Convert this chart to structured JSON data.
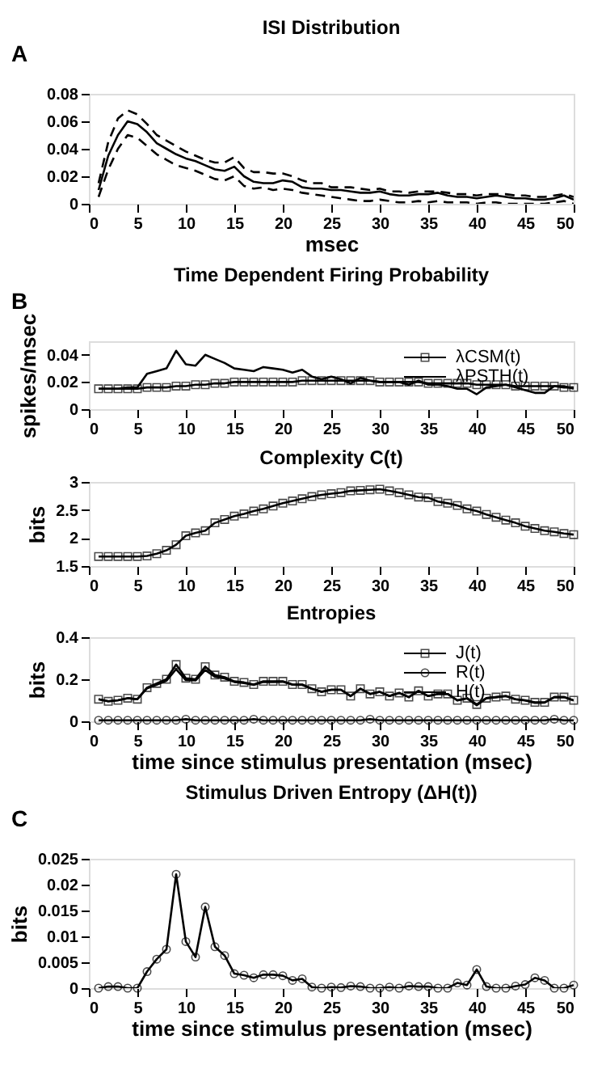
{
  "chart_data": [
    {
      "type": "line",
      "title": "ISI Distribution",
      "xlabel": "msec",
      "annotations": [
        "A"
      ],
      "x": [
        1,
        2,
        3,
        4,
        5,
        6,
        7,
        8,
        9,
        10,
        11,
        12,
        13,
        14,
        15,
        16,
        17,
        18,
        19,
        20,
        21,
        22,
        23,
        24,
        25,
        26,
        27,
        28,
        29,
        30,
        31,
        32,
        33,
        34,
        35,
        36,
        37,
        38,
        39,
        40,
        41,
        42,
        43,
        44,
        45,
        46,
        47,
        48,
        49,
        50
      ],
      "xlim": [
        0,
        50
      ],
      "xticks": [
        0,
        5,
        10,
        15,
        20,
        25,
        30,
        35,
        40,
        45,
        50
      ],
      "ylim": [
        0,
        0.08
      ],
      "yticks": [
        0,
        0.02,
        0.04,
        0.06,
        0.08
      ],
      "grid": false,
      "marker": "none",
      "series": [
        {
          "color": "#000000",
          "line_style": "solid",
          "values": [
            0.01,
            0.035,
            0.05,
            0.06,
            0.058,
            0.052,
            0.044,
            0.04,
            0.036,
            0.033,
            0.031,
            0.028,
            0.025,
            0.024,
            0.027,
            0.02,
            0.016,
            0.015,
            0.015,
            0.017,
            0.016,
            0.012,
            0.011,
            0.011,
            0.01,
            0.01,
            0.009,
            0.008,
            0.008,
            0.009,
            0.007,
            0.006,
            0.006,
            0.007,
            0.007,
            0.008,
            0.006,
            0.005,
            0.005,
            0.004,
            0.005,
            0.006,
            0.005,
            0.004,
            0.004,
            0.003,
            0.003,
            0.004,
            0.006,
            0.003
          ]
        },
        {
          "color": "#000000",
          "line_style": "dashed",
          "values": [
            0.015,
            0.045,
            0.062,
            0.068,
            0.065,
            0.058,
            0.05,
            0.046,
            0.042,
            0.038,
            0.035,
            0.032,
            0.03,
            0.03,
            0.034,
            0.026,
            0.023,
            0.023,
            0.022,
            0.022,
            0.02,
            0.017,
            0.015,
            0.015,
            0.012,
            0.012,
            0.012,
            0.011,
            0.01,
            0.011,
            0.009,
            0.009,
            0.008,
            0.009,
            0.009,
            0.009,
            0.008,
            0.007,
            0.007,
            0.006,
            0.007,
            0.007,
            0.007,
            0.006,
            0.006,
            0.005,
            0.005,
            0.006,
            0.007,
            0.005
          ]
        },
        {
          "color": "#000000",
          "line_style": "dashed",
          "values": [
            0.005,
            0.025,
            0.04,
            0.05,
            0.048,
            0.042,
            0.036,
            0.032,
            0.028,
            0.026,
            0.024,
            0.021,
            0.018,
            0.017,
            0.02,
            0.013,
            0.011,
            0.012,
            0.01,
            0.011,
            0.01,
            0.008,
            0.007,
            0.006,
            0.005,
            0.004,
            0.003,
            0.002,
            0.002,
            0.003,
            0.002,
            0.001,
            0.001,
            0.002,
            0.001,
            0.002,
            0.001,
            0.001,
            0.001,
            0.0,
            0.001,
            0.001,
            0.0,
            0.0,
            0.0,
            0.0,
            0.0,
            0.001,
            0.002,
            0.0
          ]
        }
      ]
    },
    {
      "type": "line",
      "title": "Time Dependent Firing Probability",
      "ylabel": "spikes/msec",
      "annotations": [
        "B"
      ],
      "x": [
        1,
        2,
        3,
        4,
        5,
        6,
        7,
        8,
        9,
        10,
        11,
        12,
        13,
        14,
        15,
        16,
        17,
        18,
        19,
        20,
        21,
        22,
        23,
        24,
        25,
        26,
        27,
        28,
        29,
        30,
        31,
        32,
        33,
        34,
        35,
        36,
        37,
        38,
        39,
        40,
        41,
        42,
        43,
        44,
        45,
        46,
        47,
        48,
        49,
        50
      ],
      "xlim": [
        0,
        50
      ],
      "xticks": [
        0,
        5,
        10,
        15,
        20,
        25,
        30,
        35,
        40,
        45,
        50
      ],
      "ylim": [
        0,
        0.05
      ],
      "yticks": [
        0,
        0.02,
        0.04
      ],
      "grid": false,
      "legend": "top right",
      "series": [
        {
          "name": "λCSM(t)",
          "color": "#000000",
          "marker": "square",
          "line_style": "solid",
          "values": [
            0.015,
            0.015,
            0.015,
            0.015,
            0.015,
            0.016,
            0.016,
            0.016,
            0.017,
            0.017,
            0.018,
            0.018,
            0.019,
            0.019,
            0.02,
            0.02,
            0.02,
            0.02,
            0.02,
            0.02,
            0.02,
            0.021,
            0.021,
            0.021,
            0.021,
            0.021,
            0.021,
            0.021,
            0.021,
            0.02,
            0.02,
            0.02,
            0.02,
            0.02,
            0.019,
            0.019,
            0.019,
            0.019,
            0.019,
            0.018,
            0.018,
            0.018,
            0.018,
            0.017,
            0.017,
            0.017,
            0.017,
            0.017,
            0.016,
            0.016
          ]
        },
        {
          "name": "λPSTH(t)",
          "color": "#000000",
          "marker": "none",
          "line_style": "solid",
          "values": [
            0.015,
            0.015,
            0.015,
            0.016,
            0.016,
            0.026,
            0.028,
            0.03,
            0.043,
            0.033,
            0.032,
            0.04,
            0.037,
            0.034,
            0.03,
            0.029,
            0.028,
            0.031,
            0.03,
            0.029,
            0.027,
            0.029,
            0.024,
            0.022,
            0.024,
            0.022,
            0.019,
            0.023,
            0.021,
            0.02,
            0.02,
            0.02,
            0.018,
            0.021,
            0.018,
            0.018,
            0.017,
            0.015,
            0.015,
            0.011,
            0.016,
            0.017,
            0.018,
            0.016,
            0.014,
            0.012,
            0.012,
            0.017,
            0.017,
            0.015
          ]
        }
      ]
    },
    {
      "type": "line",
      "title": "Complexity C(t)",
      "ylabel": "bits",
      "x": [
        1,
        2,
        3,
        4,
        5,
        6,
        7,
        8,
        9,
        10,
        11,
        12,
        13,
        14,
        15,
        16,
        17,
        18,
        19,
        20,
        21,
        22,
        23,
        24,
        25,
        26,
        27,
        28,
        29,
        30,
        31,
        32,
        33,
        34,
        35,
        36,
        37,
        38,
        39,
        40,
        41,
        42,
        43,
        44,
        45,
        46,
        47,
        48,
        49,
        50
      ],
      "xlim": [
        0,
        50
      ],
      "xticks": [
        0,
        5,
        10,
        15,
        20,
        25,
        30,
        35,
        40,
        45,
        50
      ],
      "ylim": [
        1.5,
        3
      ],
      "yticks": [
        1.5,
        2,
        2.5,
        3
      ],
      "grid": false,
      "series": [
        {
          "color": "#000000",
          "marker": "square",
          "line_style": "solid",
          "values": [
            1.67,
            1.67,
            1.67,
            1.67,
            1.67,
            1.68,
            1.72,
            1.78,
            1.88,
            2.04,
            2.09,
            2.13,
            2.27,
            2.33,
            2.39,
            2.43,
            2.48,
            2.52,
            2.57,
            2.62,
            2.66,
            2.7,
            2.74,
            2.77,
            2.79,
            2.81,
            2.84,
            2.85,
            2.86,
            2.87,
            2.84,
            2.81,
            2.77,
            2.73,
            2.72,
            2.65,
            2.62,
            2.58,
            2.52,
            2.48,
            2.42,
            2.37,
            2.32,
            2.27,
            2.21,
            2.17,
            2.13,
            2.11,
            2.08,
            2.06
          ]
        }
      ]
    },
    {
      "type": "line",
      "title": "Entropies",
      "ylabel": "bits",
      "xlabel": "time since stimulus presentation (msec)",
      "x": [
        1,
        2,
        3,
        4,
        5,
        6,
        7,
        8,
        9,
        10,
        11,
        12,
        13,
        14,
        15,
        16,
        17,
        18,
        19,
        20,
        21,
        22,
        23,
        24,
        25,
        26,
        27,
        28,
        29,
        30,
        31,
        32,
        33,
        34,
        35,
        36,
        37,
        38,
        39,
        40,
        41,
        42,
        43,
        44,
        45,
        46,
        47,
        48,
        49,
        50
      ],
      "xlim": [
        0,
        50
      ],
      "xticks": [
        0,
        5,
        10,
        15,
        20,
        25,
        30,
        35,
        40,
        45,
        50
      ],
      "ylim": [
        0,
        0.4
      ],
      "yticks": [
        0,
        0.2,
        0.4
      ],
      "grid": false,
      "legend": "top right",
      "series": [
        {
          "name": "J(t)",
          "color": "#000000",
          "marker": "square",
          "line_style": "solid",
          "values": [
            0.105,
            0.095,
            0.1,
            0.11,
            0.105,
            0.16,
            0.18,
            0.2,
            0.27,
            0.205,
            0.2,
            0.26,
            0.22,
            0.21,
            0.19,
            0.185,
            0.175,
            0.19,
            0.19,
            0.19,
            0.175,
            0.175,
            0.155,
            0.14,
            0.15,
            0.15,
            0.12,
            0.155,
            0.13,
            0.14,
            0.12,
            0.135,
            0.115,
            0.145,
            0.12,
            0.13,
            0.13,
            0.1,
            0.11,
            0.08,
            0.11,
            0.115,
            0.12,
            0.105,
            0.1,
            0.09,
            0.09,
            0.115,
            0.115,
            0.1
          ]
        },
        {
          "name": "R(t)",
          "color": "#000000",
          "marker": "circle",
          "line_style": "solid",
          "values": [
            0.005,
            0.005,
            0.005,
            0.005,
            0.005,
            0.005,
            0.005,
            0.005,
            0.005,
            0.01,
            0.005,
            0.005,
            0.005,
            0.005,
            0.005,
            0.005,
            0.01,
            0.005,
            0.005,
            0.005,
            0.005,
            0.005,
            0.005,
            0.005,
            0.005,
            0.005,
            0.005,
            0.005,
            0.01,
            0.005,
            0.005,
            0.005,
            0.005,
            0.005,
            0.005,
            0.005,
            0.005,
            0.005,
            0.005,
            0.005,
            0.005,
            0.005,
            0.005,
            0.005,
            0.005,
            0.005,
            0.005,
            0.01,
            0.005,
            0.005
          ]
        },
        {
          "name": "H(t)",
          "color": "#000000",
          "marker": "none",
          "line_style": "solid",
          "values": [
            0.105,
            0.095,
            0.1,
            0.11,
            0.105,
            0.157,
            0.174,
            0.193,
            0.248,
            0.196,
            0.194,
            0.244,
            0.212,
            0.204,
            0.187,
            0.182,
            0.173,
            0.187,
            0.187,
            0.188,
            0.174,
            0.173,
            0.155,
            0.14,
            0.15,
            0.15,
            0.12,
            0.155,
            0.13,
            0.14,
            0.12,
            0.135,
            0.115,
            0.145,
            0.12,
            0.13,
            0.13,
            0.099,
            0.109,
            0.076,
            0.11,
            0.115,
            0.12,
            0.105,
            0.099,
            0.088,
            0.089,
            0.115,
            0.115,
            0.099
          ]
        }
      ]
    },
    {
      "type": "line",
      "title": "Stimulus Driven Entropy  (ΔH(t))",
      "ylabel": "bits",
      "xlabel": "time since stimulus presentation (msec)",
      "annotations": [
        "C"
      ],
      "x": [
        1,
        2,
        3,
        4,
        5,
        6,
        7,
        8,
        9,
        10,
        11,
        12,
        13,
        14,
        15,
        16,
        17,
        18,
        19,
        20,
        21,
        22,
        23,
        24,
        25,
        26,
        27,
        28,
        29,
        30,
        31,
        32,
        33,
        34,
        35,
        36,
        37,
        38,
        39,
        40,
        41,
        42,
        43,
        44,
        45,
        46,
        47,
        48,
        49,
        50
      ],
      "xlim": [
        0,
        50
      ],
      "xticks": [
        0,
        5,
        10,
        15,
        20,
        25,
        30,
        35,
        40,
        45,
        50
      ],
      "ylim": [
        0,
        0.025
      ],
      "yticks": [
        0,
        0.005,
        0.01,
        0.015,
        0.02,
        0.025
      ],
      "grid": false,
      "series": [
        {
          "color": "#000000",
          "marker": "circle",
          "line_style": "solid",
          "values": [
            0,
            0.0003,
            0.0003,
            0,
            0,
            0.0032,
            0.0056,
            0.0075,
            0.022,
            0.009,
            0.006,
            0.0157,
            0.008,
            0.0063,
            0.0028,
            0.0025,
            0.002,
            0.0026,
            0.0026,
            0.0024,
            0.0015,
            0.0018,
            0.0002,
            0,
            0.0002,
            0.0001,
            0.0004,
            0.0003,
            0,
            0,
            0.0002,
            0,
            0.0004,
            0.0003,
            0.0003,
            0,
            0,
            0.001,
            0.0006,
            0.0036,
            0.0003,
            0,
            0,
            0.0004,
            0.0007,
            0.002,
            0.0015,
            0,
            0,
            0.0006
          ]
        }
      ]
    }
  ]
}
